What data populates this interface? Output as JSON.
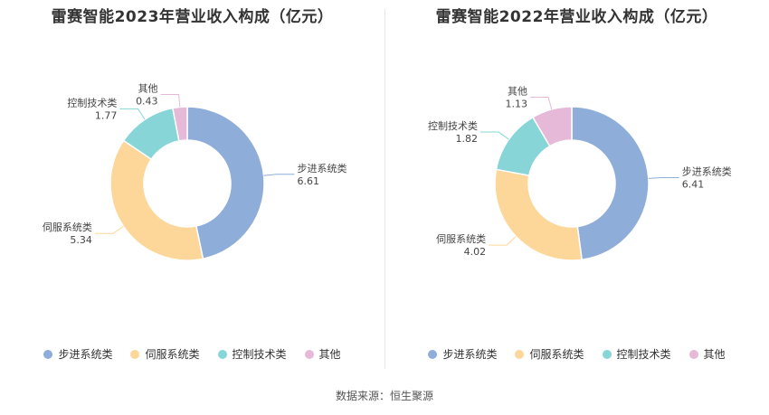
{
  "chart_data": [
    {
      "type": "pie",
      "title": "雷赛智能2023年营业收入构成（亿元）",
      "categories": [
        "步进系统类",
        "伺服系统类",
        "控制技术类",
        "其他"
      ],
      "values": [
        6.61,
        5.34,
        1.77,
        0.43
      ],
      "value_labels": [
        "6.61",
        "5.34",
        "1.77",
        "0.43"
      ],
      "colors": [
        "#8eadd9",
        "#fdd799",
        "#88d5d8",
        "#e6b9d9"
      ],
      "legend_position": "bottom"
    },
    {
      "type": "pie",
      "title": "雷赛智能2022年营业收入构成（亿元）",
      "categories": [
        "步进系统类",
        "伺服系统类",
        "控制技术类",
        "其他"
      ],
      "values": [
        6.41,
        4.02,
        1.82,
        1.13
      ],
      "value_labels": [
        "6.41",
        "4.02",
        "1.82",
        "1.13"
      ],
      "colors": [
        "#8eadd9",
        "#fdd799",
        "#88d5d8",
        "#e6b9d9"
      ],
      "legend_position": "bottom"
    }
  ],
  "footer": "数据来源：恒生聚源"
}
